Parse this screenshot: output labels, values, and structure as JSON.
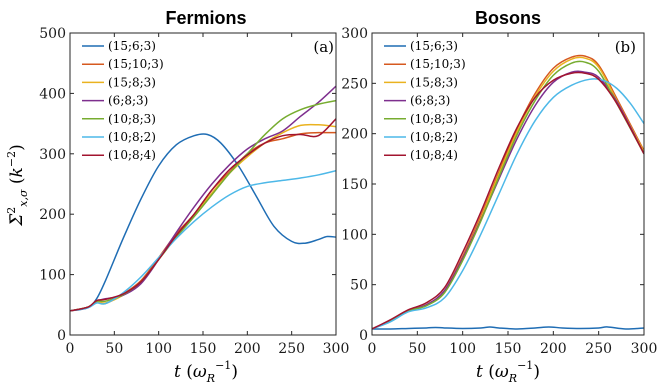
{
  "chart_data": [
    {
      "type": "line",
      "title": "Fermions",
      "panel_label": "(a)",
      "xlabel": "t (ω_R^-1)",
      "ylabel": "Σ̄²_x,σ (k^-2)",
      "xlim": [
        0,
        300
      ],
      "ylim": [
        0,
        500
      ],
      "xticks": [
        0,
        50,
        100,
        150,
        200,
        250,
        300
      ],
      "yticks": [
        0,
        100,
        200,
        300,
        400,
        500
      ],
      "grid": false,
      "legend_position": "top-left",
      "series": [
        {
          "name": "(15;6;3)",
          "color": "#1f6db4",
          "x": [
            0,
            20,
            30,
            40,
            60,
            80,
            100,
            120,
            140,
            155,
            170,
            190,
            210,
            230,
            250,
            265,
            280,
            290,
            300
          ],
          "y": [
            40,
            45,
            60,
            90,
            160,
            225,
            280,
            315,
            330,
            332,
            318,
            280,
            230,
            180,
            155,
            152,
            158,
            163,
            162
          ]
        },
        {
          "name": "(15;10;3)",
          "color": "#d6591f",
          "x": [
            0,
            20,
            30,
            40,
            60,
            80,
            100,
            120,
            140,
            160,
            180,
            200,
            220,
            240,
            260,
            280,
            300
          ],
          "y": [
            40,
            46,
            55,
            52,
            68,
            90,
            128,
            168,
            200,
            240,
            270,
            300,
            318,
            325,
            333,
            335,
            335
          ]
        },
        {
          "name": "(15;8;3)",
          "color": "#eab21f",
          "x": [
            0,
            20,
            30,
            40,
            60,
            80,
            100,
            120,
            140,
            160,
            180,
            200,
            220,
            240,
            260,
            280,
            300
          ],
          "y": [
            40,
            46,
            55,
            53,
            66,
            88,
            125,
            165,
            198,
            235,
            268,
            295,
            318,
            335,
            347,
            348,
            345
          ]
        },
        {
          "name": "(6;8;3)",
          "color": "#7e2f8e",
          "x": [
            0,
            20,
            30,
            40,
            60,
            80,
            100,
            120,
            140,
            160,
            180,
            200,
            220,
            240,
            260,
            280,
            300
          ],
          "y": [
            40,
            46,
            56,
            60,
            66,
            85,
            125,
            170,
            212,
            250,
            282,
            308,
            325,
            338,
            362,
            385,
            412
          ]
        },
        {
          "name": "(10;8;3)",
          "color": "#77ac30",
          "x": [
            0,
            20,
            30,
            40,
            60,
            80,
            100,
            120,
            140,
            160,
            180,
            200,
            220,
            240,
            260,
            280,
            300
          ],
          "y": [
            40,
            46,
            56,
            56,
            67,
            88,
            125,
            162,
            196,
            232,
            268,
            300,
            332,
            358,
            373,
            382,
            388
          ]
        },
        {
          "name": "(10;8;2)",
          "color": "#4db8e8",
          "x": [
            0,
            20,
            30,
            40,
            60,
            80,
            100,
            120,
            140,
            160,
            180,
            200,
            220,
            240,
            260,
            280,
            300
          ],
          "y": [
            40,
            45,
            53,
            52,
            70,
            96,
            128,
            160,
            188,
            212,
            232,
            246,
            252,
            256,
            260,
            265,
            272
          ]
        },
        {
          "name": "(10;8;4)",
          "color": "#a2142f",
          "x": [
            0,
            20,
            30,
            40,
            60,
            80,
            100,
            120,
            140,
            160,
            180,
            200,
            220,
            240,
            260,
            280,
            300
          ],
          "y": [
            40,
            46,
            57,
            59,
            68,
            88,
            125,
            165,
            200,
            240,
            274,
            298,
            318,
            330,
            332,
            330,
            358
          ]
        }
      ]
    },
    {
      "type": "line",
      "title": "Bosons",
      "panel_label": "(b)",
      "xlabel": "t (ω_R^-1)",
      "ylabel": "",
      "xlim": [
        0,
        300
      ],
      "ylim": [
        0,
        300
      ],
      "xticks": [
        0,
        50,
        100,
        150,
        200,
        250,
        300
      ],
      "yticks": [
        0,
        50,
        100,
        150,
        200,
        250,
        300
      ],
      "grid": false,
      "legend_position": "top-left",
      "series": [
        {
          "name": "(15;6;3)",
          "color": "#1f6db4",
          "x": [
            0,
            20,
            40,
            60,
            70,
            80,
            100,
            120,
            130,
            140,
            160,
            180,
            195,
            210,
            230,
            250,
            260,
            280,
            300
          ],
          "y": [
            6,
            6,
            6.5,
            7,
            7.5,
            7,
            6.5,
            7,
            8,
            7,
            6,
            7,
            8,
            7,
            6.5,
            7,
            8,
            6,
            7
          ]
        },
        {
          "name": "(15;10;3)",
          "color": "#d6591f",
          "x": [
            0,
            20,
            40,
            60,
            80,
            100,
            120,
            140,
            160,
            180,
            200,
            220,
            235,
            250,
            270,
            300
          ],
          "y": [
            6,
            14,
            24,
            30,
            44,
            78,
            118,
            162,
            205,
            240,
            265,
            276,
            277,
            268,
            235,
            183
          ]
        },
        {
          "name": "(15;8;3)",
          "color": "#eab21f",
          "x": [
            0,
            20,
            40,
            60,
            80,
            100,
            120,
            140,
            160,
            180,
            200,
            220,
            235,
            250,
            270,
            300
          ],
          "y": [
            6,
            14,
            24,
            30,
            43,
            76,
            116,
            160,
            202,
            237,
            262,
            274,
            275,
            266,
            233,
            182
          ]
        },
        {
          "name": "(6;8;3)",
          "color": "#7e2f8e",
          "x": [
            0,
            20,
            40,
            60,
            80,
            100,
            120,
            140,
            160,
            180,
            200,
            220,
            235,
            250,
            270,
            300
          ],
          "y": [
            6,
            14,
            24,
            30,
            44,
            76,
            114,
            155,
            195,
            228,
            251,
            261,
            261,
            256,
            232,
            180
          ]
        },
        {
          "name": "(10;8;3)",
          "color": "#77ac30",
          "x": [
            0,
            20,
            40,
            60,
            80,
            100,
            120,
            140,
            160,
            180,
            200,
            220,
            235,
            250,
            270,
            300
          ],
          "y": [
            6,
            14,
            24,
            29,
            42,
            74,
            113,
            157,
            199,
            233,
            258,
            270,
            271,
            262,
            230,
            180
          ]
        },
        {
          "name": "(10;8;2)",
          "color": "#4db8e8",
          "x": [
            0,
            20,
            40,
            60,
            80,
            100,
            120,
            140,
            160,
            180,
            200,
            220,
            240,
            255,
            270,
            285,
            300
          ],
          "y": [
            6,
            13,
            23,
            27,
            37,
            64,
            100,
            140,
            180,
            213,
            236,
            248,
            254,
            253,
            245,
            230,
            210
          ]
        },
        {
          "name": "(10;8;4)",
          "color": "#a2142f",
          "x": [
            0,
            20,
            40,
            60,
            80,
            100,
            120,
            140,
            160,
            180,
            200,
            220,
            235,
            250,
            270,
            300
          ],
          "y": [
            6,
            15,
            25,
            32,
            47,
            82,
            122,
            166,
            206,
            236,
            253,
            260,
            260,
            254,
            230,
            180
          ]
        }
      ]
    }
  ]
}
